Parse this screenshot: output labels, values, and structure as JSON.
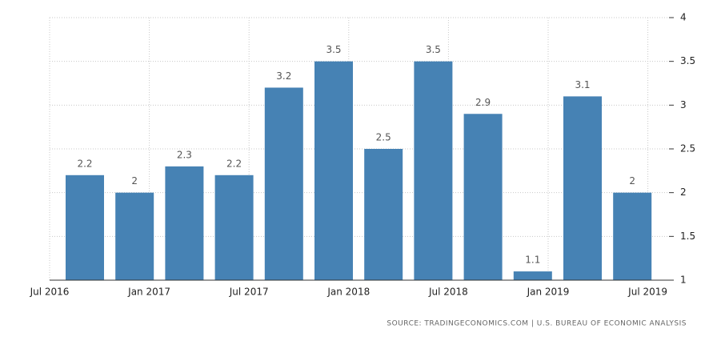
{
  "chart_data": {
    "type": "bar",
    "categories": [
      null,
      null,
      null,
      null,
      null,
      null,
      null,
      null,
      null,
      null,
      null,
      null
    ],
    "values": [
      2.2,
      2,
      2.3,
      2.2,
      3.2,
      3.5,
      2.5,
      3.5,
      2.9,
      1.1,
      3.1,
      2
    ],
    "color": "#4682b4",
    "xtick_labels": [
      "Jul 2016",
      "Jan 2017",
      "Jul 2017",
      "Jan 2018",
      "Jul 2018",
      "Jan 2019",
      "Jul 2019"
    ],
    "ylim": [
      1,
      4
    ],
    "yticks": [
      1,
      1.5,
      2,
      2.5,
      3,
      3.5,
      4
    ],
    "grid": true,
    "source": "SOURCE: TRADINGECONOMICS.COM | U.S. BUREAU OF ECONOMIC ANALYSIS"
  }
}
